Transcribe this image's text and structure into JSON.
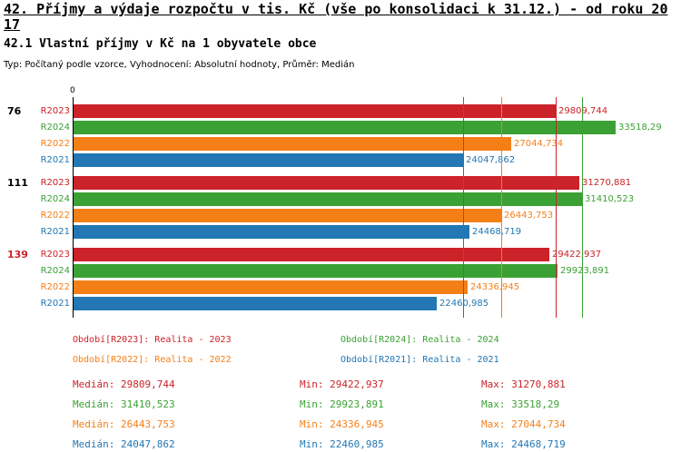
{
  "title": "42. Příjmy a výdaje rozpočtu v tis. Kč (vše po konsolidaci k 31.12.) - od roku 2017",
  "subtitle": "42.1 Vlastní příjmy v Kč na 1 obyvatele obce",
  "meta": "Typ: Počítaný podle vzorce, Vyhodnocení: Absolutní hodnoty, Průměr: Medián",
  "axis": {
    "origin_label": "0"
  },
  "stats_labels": {
    "median": "Medián",
    "min": "Min",
    "max": "Max"
  },
  "chart_data": {
    "type": "bar",
    "orientation": "horizontal",
    "title": "42.1 Vlastní příjmy v Kč na 1 obyvatele obce",
    "xlim": [
      0,
      34000
    ],
    "grid": false,
    "legend_position": "bottom",
    "groups": [
      {
        "label": "76",
        "color": "#000000"
      },
      {
        "label": "111",
        "color": "#000000"
      },
      {
        "label": "139",
        "color": "#cc2229"
      }
    ],
    "series": [
      {
        "name": "R2023",
        "color": "#cc2229",
        "legend": "Období[R2023]: Realita - 2023",
        "values": [
          29809.744,
          31270.881,
          29422.937
        ],
        "value_labels": [
          "29809,744",
          "31270,881",
          "29422,937"
        ],
        "median": 29809.744,
        "stats": {
          "median": "29809,744",
          "min": "29422,937",
          "max": "31270,881"
        }
      },
      {
        "name": "R2024",
        "color": "#3ba135",
        "legend": "Období[R2024]: Realita - 2024",
        "values": [
          33518.29,
          31410.523,
          29923.891
        ],
        "value_labels": [
          "33518,29",
          "31410,523",
          "29923,891"
        ],
        "median": 31410.523,
        "stats": {
          "median": "31410,523",
          "min": "29923,891",
          "max": "33518,29"
        }
      },
      {
        "name": "R2022",
        "color": "#f57f17",
        "legend": "Období[R2022]: Realita - 2022",
        "values": [
          27044.734,
          26443.753,
          24336.945
        ],
        "value_labels": [
          "27044,734",
          "26443,753",
          "24336,945"
        ],
        "median": 26443.753,
        "stats": {
          "median": "26443,753",
          "min": "24336,945",
          "max": "27044,734"
        }
      },
      {
        "name": "R2021",
        "color": "#2277b4",
        "legend": "Období[R2021]: Realita - 2021",
        "values": [
          24047.862,
          24468.719,
          22460.985
        ],
        "value_labels": [
          "24047,862",
          "24468,719",
          "22460,985"
        ],
        "median": 24047.862,
        "stats": {
          "median": "24047,862",
          "min": "22460,985",
          "max": "24468,719"
        }
      }
    ]
  }
}
